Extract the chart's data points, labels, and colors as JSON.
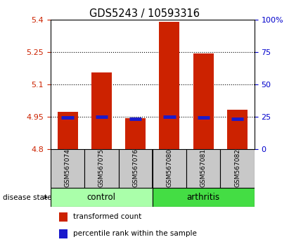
{
  "title": "GDS5243 / 10593316",
  "samples": [
    "GSM567074",
    "GSM567075",
    "GSM567076",
    "GSM567080",
    "GSM567081",
    "GSM567082"
  ],
  "groups": [
    "control",
    "control",
    "control",
    "arthritis",
    "arthritis",
    "arthritis"
  ],
  "bar_values": [
    4.975,
    5.155,
    4.945,
    5.39,
    5.245,
    4.985
  ],
  "bar_base": 4.8,
  "percentile_values": [
    4.947,
    4.95,
    4.942,
    4.95,
    4.948,
    4.942
  ],
  "ylim": [
    4.8,
    5.4
  ],
  "yticks_left": [
    4.8,
    4.95,
    5.1,
    5.25,
    5.4
  ],
  "yticks_right": [
    0,
    25,
    50,
    75,
    100
  ],
  "left_color": "#cc2200",
  "right_color": "#0000cc",
  "bar_color": "#cc2200",
  "percentile_color": "#1a1acc",
  "control_color": "#aaffaa",
  "arthritis_color": "#44dd44",
  "sample_bg_color": "#c8c8c8",
  "group_label": "disease state",
  "legend_bar_label": "transformed count",
  "legend_pct_label": "percentile rank within the sample",
  "bar_width": 0.6
}
